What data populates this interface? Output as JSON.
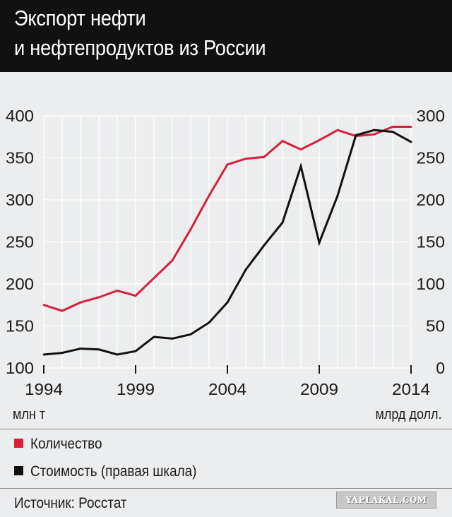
{
  "header": {
    "title_line1": "Экспорт нефти",
    "title_line2": "и нефтепродуктов из России"
  },
  "chart_data": {
    "type": "line",
    "x": [
      1994,
      1995,
      1996,
      1997,
      1998,
      1999,
      2000,
      2001,
      2002,
      2003,
      2004,
      2005,
      2006,
      2007,
      2008,
      2009,
      2010,
      2011,
      2012,
      2013,
      2014
    ],
    "series": [
      {
        "name": "Количество",
        "axis": "left",
        "color": "#d7203c",
        "values": [
          175,
          168,
          178,
          184,
          192,
          186,
          207,
          228,
          265,
          305,
          342,
          349,
          351,
          370,
          360,
          371,
          383,
          376,
          378,
          387,
          387
        ]
      },
      {
        "name": "Стоимость (правая шкала)",
        "axis": "right",
        "color": "#111111",
        "values": [
          16,
          18,
          23,
          22,
          16,
          20,
          37,
          35,
          40,
          54,
          78,
          117,
          146,
          173,
          240,
          149,
          205,
          277,
          283,
          281,
          269
        ]
      }
    ],
    "xticks": [
      "1994",
      "1999",
      "2004",
      "2009",
      "2014"
    ],
    "xtick_values": [
      1994,
      1999,
      2004,
      2009,
      2014
    ],
    "xlim": [
      1994,
      2014
    ],
    "ylim_left": [
      100,
      400
    ],
    "yticks_left": [
      100,
      150,
      200,
      250,
      300,
      350,
      400
    ],
    "ylim_right": [
      0,
      300
    ],
    "yticks_right": [
      0,
      50,
      100,
      150,
      200,
      250,
      300
    ],
    "ylabel_left": "млн т",
    "ylabel_right": "млрд долл.",
    "grid": true,
    "grid_color": "#ffffff",
    "plot_bg": "#ecedee"
  },
  "legend": {
    "items": [
      {
        "label": "Количество",
        "color": "#d7203c"
      },
      {
        "label": "Стоимость (правая шкала)",
        "color": "#111111"
      }
    ]
  },
  "footer": {
    "source": "Источник: Росстат",
    "watermark": "YAPLAKAL.COM"
  }
}
